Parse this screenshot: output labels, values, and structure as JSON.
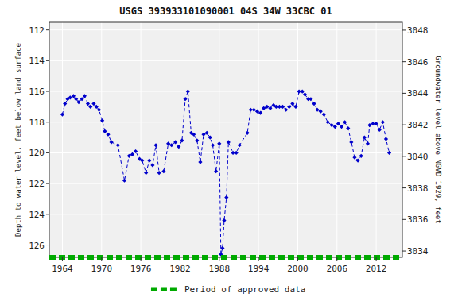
{
  "chart_data": {
    "type": "line",
    "title": "USGS 393933101090001 04S 34W 33CBC 01",
    "y_label": "Depth to water level, feet below land surface",
    "y2_label": "Groundwater level above NGVD 1929, feet",
    "xlim": [
      1962.0,
      2016.0
    ],
    "xticks": [
      1964,
      1970,
      1976,
      1982,
      1988,
      1994,
      2000,
      2006,
      2012
    ],
    "ylim": [
      126.8,
      111.5
    ],
    "yticks": [
      112,
      114,
      116,
      118,
      120,
      122,
      124,
      126
    ],
    "y2lim": [
      3033.6,
      3048.5
    ],
    "y2ticks": [
      3048,
      3046,
      3044,
      3042,
      3040,
      3038,
      3036,
      3034
    ],
    "grid": true,
    "legend": "bottom",
    "x": [
      1964.0,
      1964.4,
      1964.8,
      1965.2,
      1965.7,
      1966.1,
      1966.5,
      1967.0,
      1967.4,
      1967.9,
      1968.3,
      1968.8,
      1969.2,
      1969.6,
      1970.1,
      1970.5,
      1971.0,
      1971.5,
      1972.5,
      1973.5,
      1974.2,
      1974.7,
      1975.2,
      1975.8,
      1976.2,
      1976.8,
      1977.3,
      1977.8,
      1978.3,
      1978.8,
      1979.5,
      1980.2,
      1980.7,
      1981.3,
      1981.8,
      1982.3,
      1982.8,
      1983.2,
      1983.7,
      1984.1,
      1984.6,
      1985.1,
      1985.6,
      1986.1,
      1986.6,
      1987.0,
      1987.5,
      1988.0,
      1988.25,
      1988.5,
      1988.75,
      1989.1,
      1989.4,
      1990.1,
      1990.6,
      1991.1,
      1992.3,
      1992.8,
      1993.3,
      1993.8,
      1994.3,
      1994.8,
      1995.3,
      1995.8,
      1996.3,
      1996.7,
      1997.2,
      1997.7,
      1998.2,
      1998.7,
      1999.2,
      1999.7,
      2000.2,
      2000.7,
      2001.1,
      2001.6,
      2002.0,
      2002.5,
      2003.0,
      2003.5,
      2004.0,
      2004.6,
      2005.2,
      2005.7,
      2006.2,
      2006.7,
      2007.2,
      2007.7,
      2008.2,
      2008.7,
      2009.2,
      2009.7,
      2010.2,
      2010.7,
      2011.0,
      2011.5,
      2012.0,
      2012.5,
      2013.0,
      2013.5,
      2014.0
    ],
    "series": [
      {
        "color": "#0000cc",
        "marker": "diamond",
        "line_style": "dashed",
        "values": [
          117.5,
          116.8,
          116.5,
          116.4,
          116.3,
          116.5,
          116.7,
          116.5,
          116.3,
          116.8,
          117.0,
          116.8,
          117.0,
          117.2,
          117.9,
          118.6,
          118.8,
          119.3,
          119.5,
          121.8,
          120.2,
          120.1,
          119.9,
          120.4,
          120.5,
          121.3,
          120.5,
          120.8,
          119.5,
          121.3,
          121.2,
          119.4,
          119.5,
          119.3,
          119.6,
          119.2,
          116.5,
          116.0,
          118.7,
          118.8,
          119.2,
          120.6,
          118.8,
          118.7,
          119.0,
          119.5,
          121.2,
          119.4,
          126.6,
          126.2,
          124.4,
          122.9,
          119.3,
          120.0,
          120.0,
          119.5,
          118.7,
          117.2,
          117.2,
          117.3,
          117.4,
          117.1,
          117.0,
          117.1,
          116.9,
          117.0,
          117.0,
          117.0,
          117.2,
          117.0,
          116.8,
          117.0,
          116.0,
          116.0,
          116.2,
          116.5,
          116.5,
          116.8,
          117.2,
          117.3,
          117.5,
          118.0,
          118.2,
          118.3,
          118.1,
          118.3,
          118.0,
          118.4,
          119.3,
          120.3,
          120.5,
          120.2,
          119.0,
          119.4,
          118.2,
          118.1,
          118.1,
          118.5,
          118.0,
          119.1,
          120.0
        ]
      },
      {
        "name": "Period of approved data",
        "color": "#00aa00",
        "line_style": "dashed",
        "x": [
          1962.0,
          2016.0
        ],
        "values": [
          126.8,
          126.8
        ]
      }
    ]
  }
}
